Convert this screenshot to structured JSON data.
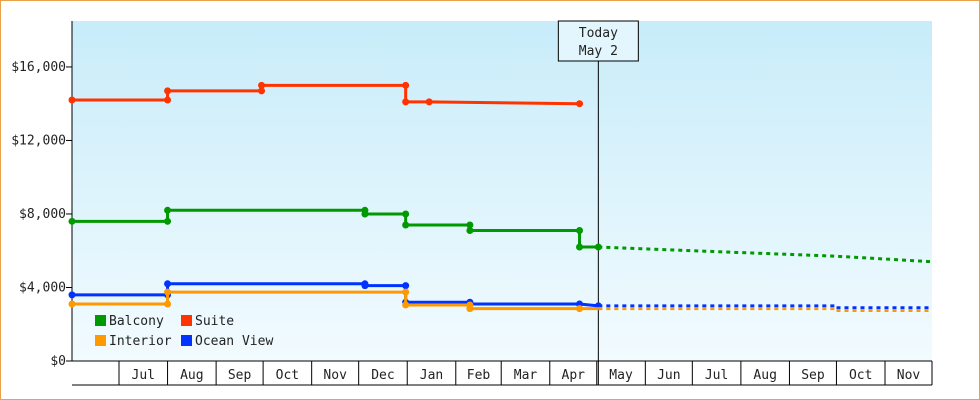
{
  "chart_data": {
    "type": "line",
    "subtype": "step",
    "title": "",
    "xlabel": "",
    "ylabel": "",
    "ylim": [
      0,
      18500
    ],
    "y_ticks": [
      0,
      4000,
      8000,
      12000,
      16000
    ],
    "y_tick_labels": [
      "$0",
      "$4,000",
      "$8,000",
      "$12,000",
      "$16,000"
    ],
    "x_range": [
      "2023-06-01",
      "2024-12-01"
    ],
    "x_tick_labels": [
      "Jul",
      "Aug",
      "Sep",
      "Oct",
      "Nov",
      "Dec",
      "Jan",
      "Feb",
      "Mar",
      "Apr",
      "May",
      "Jun",
      "Jul",
      "Aug",
      "Sep",
      "Oct",
      "Nov"
    ],
    "x_month_boundaries": [
      "2023-07-01",
      "2023-08-01",
      "2023-09-01",
      "2023-10-01",
      "2023-11-01",
      "2023-12-01",
      "2024-01-01",
      "2024-02-01",
      "2024-03-01",
      "2024-04-01",
      "2024-05-01",
      "2024-06-01",
      "2024-07-01",
      "2024-08-01",
      "2024-09-01",
      "2024-10-01",
      "2024-11-01",
      "2024-12-01"
    ],
    "today": {
      "date": "2024-05-02",
      "label_line1": "Today",
      "label_line2": "May 2"
    },
    "grid": false,
    "background": "gradient light blue",
    "legend_position": "bottom-left",
    "series": [
      {
        "name": "Suite",
        "color": "#ff3300",
        "history": [
          [
            "2023-06-01",
            14200
          ],
          [
            "2023-08-01",
            14200
          ],
          [
            "2023-08-01",
            14700
          ],
          [
            "2023-09-30",
            14700
          ],
          [
            "2023-09-30",
            15000
          ],
          [
            "2023-12-31",
            15000
          ],
          [
            "2023-12-31",
            14100
          ],
          [
            "2024-01-15",
            14100
          ],
          [
            "2024-04-20",
            14000
          ]
        ],
        "markers": [
          "2023-06-01",
          "2023-08-01",
          "2023-09-30",
          "2023-12-31",
          "2024-01-15",
          "2024-04-20"
        ],
        "forecast": []
      },
      {
        "name": "Balcony",
        "color": "#009900",
        "history": [
          [
            "2023-06-01",
            7600
          ],
          [
            "2023-08-01",
            7600
          ],
          [
            "2023-08-01",
            8200
          ],
          [
            "2023-12-05",
            8200
          ],
          [
            "2023-12-05",
            8000
          ],
          [
            "2023-12-31",
            8000
          ],
          [
            "2023-12-31",
            7400
          ],
          [
            "2024-02-10",
            7400
          ],
          [
            "2024-02-10",
            7100
          ],
          [
            "2024-04-20",
            7100
          ],
          [
            "2024-04-20",
            6200
          ],
          [
            "2024-05-02",
            6200
          ]
        ],
        "markers": [
          "2023-06-01",
          "2023-08-01",
          "2023-12-05",
          "2023-12-31",
          "2024-02-10",
          "2024-04-20",
          "2024-05-02"
        ],
        "forecast": [
          [
            "2024-05-02",
            6200
          ],
          [
            "2024-06-01",
            6100
          ],
          [
            "2024-07-01",
            6000
          ],
          [
            "2024-08-01",
            5900
          ],
          [
            "2024-09-01",
            5800
          ],
          [
            "2024-10-01",
            5700
          ],
          [
            "2024-11-01",
            5550
          ],
          [
            "2024-12-01",
            5400
          ]
        ]
      },
      {
        "name": "Ocean View",
        "color": "#0033ff",
        "history": [
          [
            "2023-06-01",
            3600
          ],
          [
            "2023-08-01",
            3600
          ],
          [
            "2023-08-01",
            4200
          ],
          [
            "2023-12-05",
            4200
          ],
          [
            "2023-12-05",
            4100
          ],
          [
            "2023-12-31",
            4100
          ],
          [
            "2023-12-31",
            3200
          ],
          [
            "2024-02-10",
            3200
          ],
          [
            "2024-02-10",
            3100
          ],
          [
            "2024-04-20",
            3100
          ],
          [
            "2024-05-02",
            3000
          ]
        ],
        "markers": [
          "2023-06-01",
          "2023-08-01",
          "2023-12-05",
          "2023-12-31",
          "2024-02-10",
          "2024-04-20",
          "2024-05-02"
        ],
        "forecast": [
          [
            "2024-05-02",
            3000
          ],
          [
            "2024-10-01",
            3000
          ],
          [
            "2024-10-01",
            2900
          ],
          [
            "2024-12-01",
            2900
          ]
        ]
      },
      {
        "name": "Interior",
        "color": "#ff9900",
        "history": [
          [
            "2023-06-01",
            3100
          ],
          [
            "2023-08-01",
            3100
          ],
          [
            "2023-08-01",
            3750
          ],
          [
            "2023-12-31",
            3750
          ],
          [
            "2023-12-31",
            3050
          ],
          [
            "2024-02-10",
            3050
          ],
          [
            "2024-02-10",
            2850
          ],
          [
            "2024-04-20",
            2850
          ],
          [
            "2024-05-02",
            2850
          ]
        ],
        "markers": [
          "2023-06-01",
          "2023-08-01",
          "2023-12-31",
          "2024-02-10",
          "2024-04-20"
        ],
        "forecast": [
          [
            "2024-05-02",
            2850
          ],
          [
            "2024-10-01",
            2850
          ],
          [
            "2024-10-01",
            2750
          ],
          [
            "2024-12-01",
            2750
          ]
        ]
      }
    ],
    "legend": [
      {
        "name": "Balcony",
        "color": "#009900"
      },
      {
        "name": "Suite",
        "color": "#ff3300"
      },
      {
        "name": "Interior",
        "color": "#ff9900"
      },
      {
        "name": "Ocean View",
        "color": "#0033ff"
      }
    ]
  }
}
